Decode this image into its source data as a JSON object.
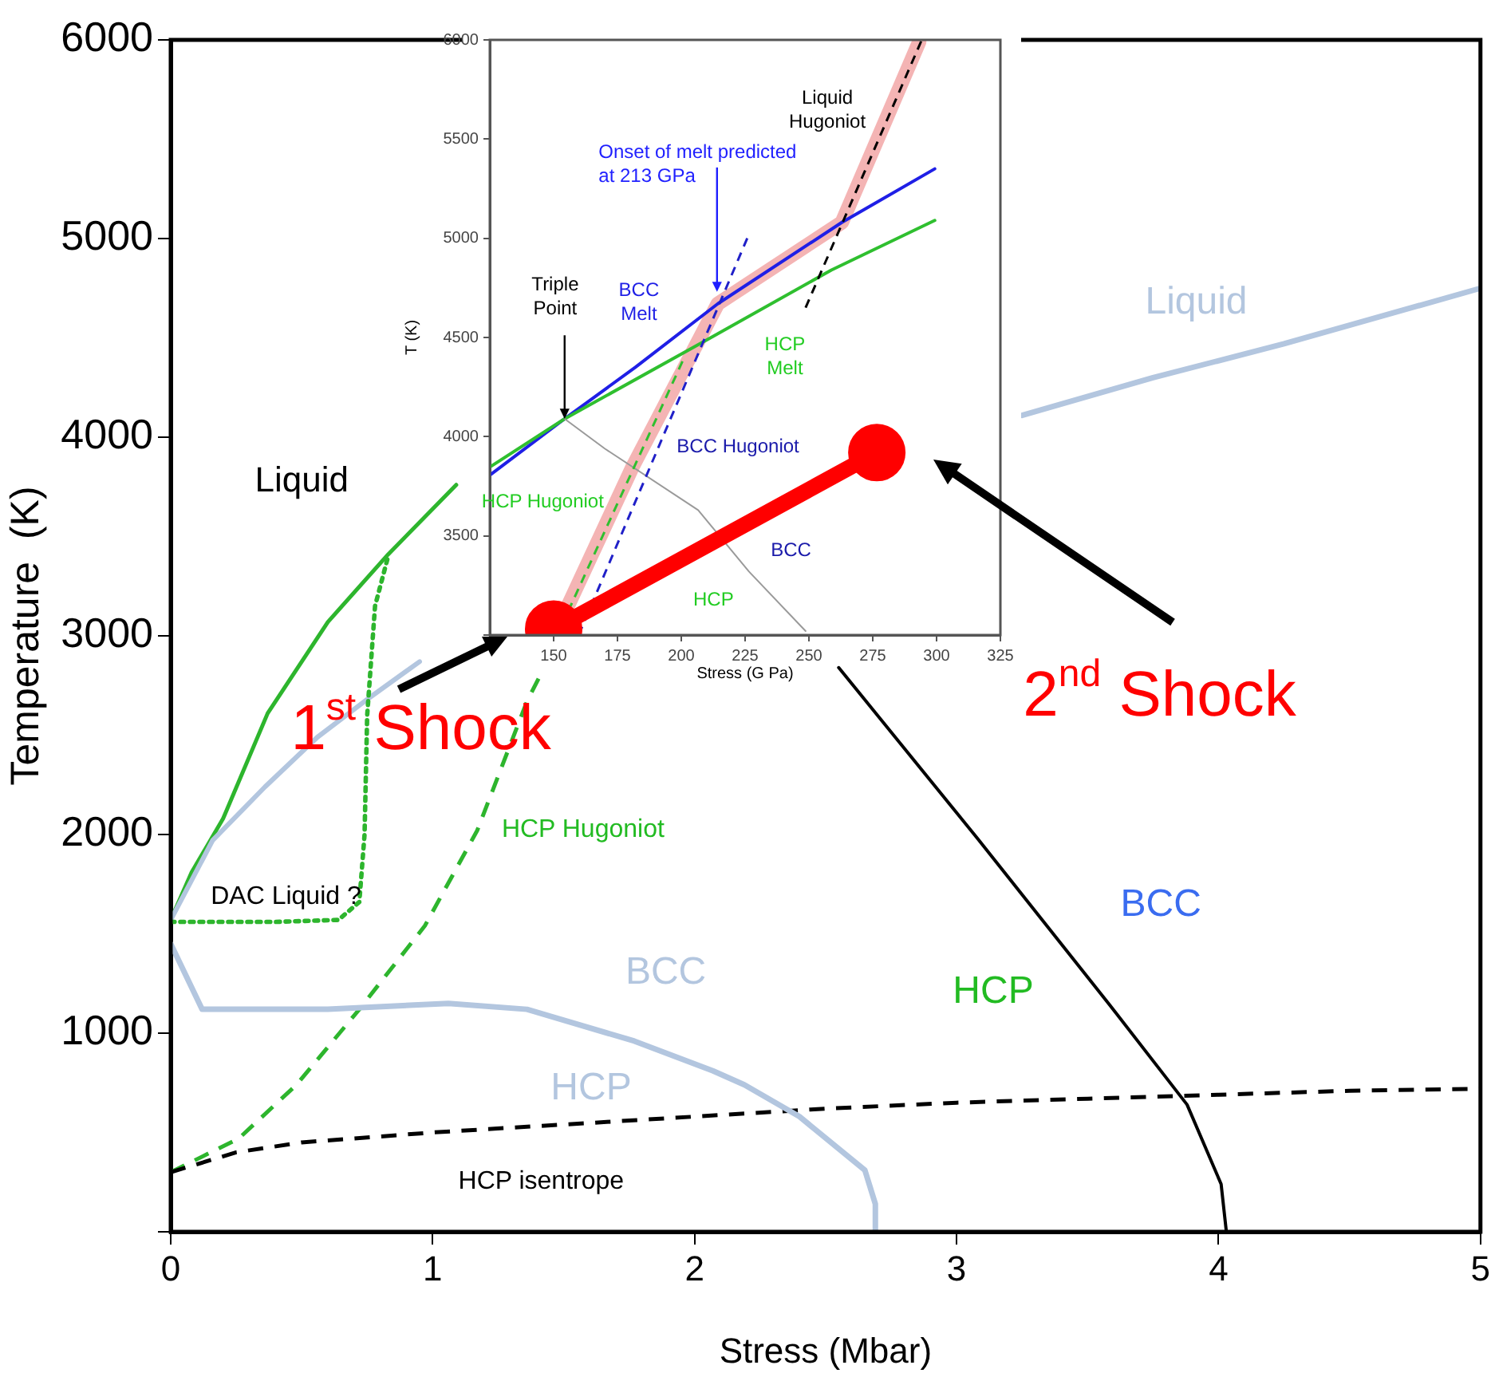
{
  "chart_data": [
    {
      "type": "line",
      "xlabel": "Stress (Mbar)",
      "ylabel": "Temperature  (K)",
      "xlim": [
        0,
        5
      ],
      "ylim": [
        0,
        6000
      ],
      "xticks": [
        0,
        1,
        2,
        3,
        4,
        5
      ],
      "yticks": [
        {
          "value": 0,
          "label": null
        },
        1000,
        2000,
        3000,
        4000,
        5000,
        6000
      ],
      "marker": "none",
      "series": [
        {
          "color": "#2db52d",
          "line_style": "solid",
          "x": [
            0,
            0.08,
            0.2,
            0.37,
            0.6,
            0.83,
            1.09
          ],
          "values": [
            1570,
            1810,
            2080,
            2610,
            3070,
            3410,
            3760
          ]
        },
        {
          "color": "#b3c6df",
          "line_style": "solid",
          "x": [
            0,
            0.16,
            0.36,
            0.56,
            0.76,
            0.95
          ],
          "values": [
            1570,
            1970,
            2240,
            2490,
            2690,
            2870
          ]
        },
        {
          "color": "#2db52d",
          "line_style": "dotted",
          "x": [
            0,
            0.4,
            0.64,
            0.72,
            0.74,
            0.75,
            0.78,
            0.83
          ],
          "values": [
            1560,
            1560,
            1570,
            1660,
            2000,
            2600,
            3150,
            3400
          ]
        },
        {
          "color": "#2db52d",
          "line_style": "dashed",
          "x": [
            0,
            0.26,
            0.48,
            0.72,
            0.97,
            1.17,
            1.36,
            1.41
          ],
          "values": [
            300,
            470,
            740,
            1120,
            1540,
            2020,
            2670,
            2800
          ]
        },
        {
          "color": "#000000",
          "line_style": "dashed",
          "x": [
            0,
            0.25,
            0.5,
            1,
            1.5,
            2,
            2.5,
            3,
            3.5,
            4,
            4.5,
            5
          ],
          "values": [
            300,
            400,
            450,
            500,
            540,
            580,
            620,
            650,
            670,
            690,
            710,
            720
          ]
        },
        {
          "color": "#000000",
          "line_style": "solid",
          "x": [
            2.55,
            3.08,
            3.58,
            3.88,
            4.01,
            4.03
          ],
          "values": [
            2840,
            1980,
            1150,
            640,
            240,
            0
          ]
        },
        {
          "color": "#b3c6df",
          "line_style": "solid",
          "x": [
            0,
            0.12,
            0.6,
            1.06,
            1.36,
            1.77,
            2.07,
            2.19,
            2.4,
            2.65,
            2.69,
            2.69
          ],
          "values": [
            1450,
            1120,
            1120,
            1150,
            1120,
            960,
            810,
            740,
            580,
            310,
            140,
            0
          ]
        },
        {
          "color": "#b3c6df",
          "line_style": "solid",
          "x": [
            3.25,
            3.75,
            4.25,
            5
          ],
          "values": [
            4110,
            4300,
            4470,
            4750
          ]
        }
      ],
      "annotations": [
        "Liquid",
        "DAC Liquid ?",
        "HCP Hugoniot",
        "BCC",
        "HCP",
        "HCP isentrope",
        "Liquid",
        "BCC",
        "HCP",
        "1$^{st}$ Shock",
        "2$^{nd}$ Shock"
      ]
    },
    {
      "type": "line",
      "xlabel": "Stress (G Pa)",
      "ylabel": "T (K)",
      "xlim": [
        125,
        325
      ],
      "ylim": [
        3000,
        6000
      ],
      "xticks": [
        150,
        175,
        200,
        225,
        250,
        275,
        300,
        325
      ],
      "yticks": [
        {
          "value": 3000,
          "label": null
        },
        3500,
        4000,
        4500,
        5000,
        5500,
        6000
      ],
      "marker": "none",
      "series": [
        {
          "color": "#f4b4b4",
          "line_style": "solid",
          "x": [
            155.7,
            181,
            214.3,
            262.9,
            293.2
          ],
          "values": [
            3150,
            3850,
            4670,
            5080,
            5990
          ]
        },
        {
          "color": "#1f1fe6",
          "line_style": "solid",
          "x": [
            125.4,
            154.3,
            182,
            214.3,
            262.9,
            299.3
          ],
          "values": [
            3810,
            4090,
            4350,
            4670,
            5080,
            5350
          ]
        },
        {
          "color": "#2fbf2f",
          "line_style": "solid",
          "x": [
            125.4,
            154.3,
            210.3,
            258.8,
            299.3
          ],
          "values": [
            3850,
            4090,
            4490,
            4840,
            5090
          ]
        },
        {
          "color": "#9a9a9a",
          "line_style": "solid",
          "x": [
            154.3,
            170,
            206.6,
            226.5,
            248.7
          ],
          "values": [
            4090,
            3940,
            3630,
            3320,
            3020
          ]
        },
        {
          "color": "#2fbf2f",
          "line_style": "dashed",
          "x": [
            155.7,
            201.2
          ],
          "values": [
            3120,
            4400
          ]
        },
        {
          "color": "#2020c8",
          "line_style": "dashed",
          "x": [
            159.8,
            226.5
          ],
          "values": [
            3000,
            5020
          ]
        },
        {
          "color": "#000000",
          "line_style": "dashed",
          "x": [
            248.7,
            294.2
          ],
          "values": [
            4650,
            6000
          ]
        },
        {
          "color": "#ff0000",
          "line_style": "solid",
          "marker": "circle",
          "x": [
            150,
            276.6
          ],
          "values": [
            3030,
            3920
          ]
        }
      ],
      "annotations": [
        "Liquid\nHugoniot",
        {
          "text": "Onset of melt predicted\nat 213 GPa",
          "x": 214,
          "y": 4730
        },
        {
          "text": "Triple\nPoint",
          "x": 154.3,
          "y": 4090
        },
        "BCC\nMelt",
        "HCP\nMelt",
        "BCC Hugoniot",
        "HCP Hugoniot",
        "BCC",
        "HCP"
      ]
    }
  ]
}
